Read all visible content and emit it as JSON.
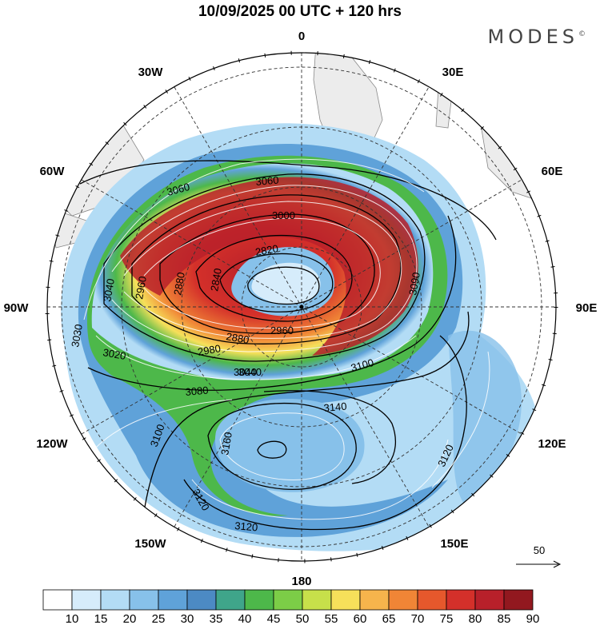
{
  "title": "10/09/2025  00 UTC  + 120 hrs",
  "brand": {
    "name": "MODES",
    "mark": "©"
  },
  "lon_labels": [
    {
      "id": "0",
      "text": "0"
    },
    {
      "id": "30E",
      "text": "30E"
    },
    {
      "id": "60E",
      "text": "60E"
    },
    {
      "id": "90E",
      "text": "90E"
    },
    {
      "id": "120E",
      "text": "120E"
    },
    {
      "id": "150E",
      "text": "150E"
    },
    {
      "id": "180",
      "text": "180"
    },
    {
      "id": "150W",
      "text": "150W"
    },
    {
      "id": "120W",
      "text": "120W"
    },
    {
      "id": "90W",
      "text": "90W"
    },
    {
      "id": "60W",
      "text": "60W"
    },
    {
      "id": "30W",
      "text": "30W"
    }
  ],
  "contour_labels": [
    "3060",
    "3060",
    "3000",
    "2820",
    "2840",
    "2880",
    "2980",
    "3040",
    "3040",
    "2960",
    "2880",
    "2960",
    "3020",
    "3080",
    "3040",
    "3090",
    "3100",
    "3140",
    "3100",
    "3160",
    "3120",
    "3120",
    "3120",
    "3030"
  ],
  "reference_vector": {
    "label": "50"
  },
  "colorbar": {
    "levels": [
      "10",
      "15",
      "20",
      "25",
      "30",
      "35",
      "40",
      "45",
      "50",
      "55",
      "60",
      "65",
      "70",
      "75",
      "80",
      "85",
      "90"
    ],
    "colors": [
      "#ffffff",
      "#d6ecfb",
      "#b3dcf5",
      "#87c1ea",
      "#5fa2d9",
      "#4c8ac4",
      "#3fa58a",
      "#4db84a",
      "#7ccd47",
      "#c7e04a",
      "#f6e05a",
      "#f6b44c",
      "#f08536",
      "#e6582c",
      "#d4302a",
      "#b8202a",
      "#92181f"
    ]
  }
}
